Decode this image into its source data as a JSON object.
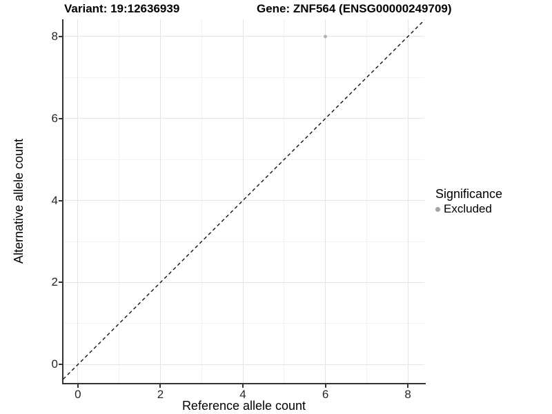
{
  "chart_data": {
    "type": "scatter",
    "titles": {
      "left": "Variant: 19:12636939",
      "right": "Gene: ZNF564 (ENSG00000249709)"
    },
    "xlabel": "Reference allele count",
    "ylabel": "Alternative allele count",
    "xlim": [
      -0.35,
      8.4
    ],
    "ylim": [
      -0.45,
      8.42
    ],
    "x_major_ticks": [
      0,
      2,
      4,
      6,
      8
    ],
    "x_minor_ticks": [
      1,
      3,
      5,
      7
    ],
    "y_major_ticks": [
      0,
      2,
      4,
      6,
      8
    ],
    "y_minor_ticks": [
      1,
      3,
      5,
      7
    ],
    "grid": "major+minor",
    "points": [
      {
        "x": 6,
        "y": 8,
        "series": "Excluded"
      }
    ],
    "identity_line": {
      "style": "dashed",
      "equation": "y = x",
      "from": -1,
      "to": 9.5
    },
    "legend": {
      "title": "Significance",
      "position": "right",
      "items": [
        {
          "label": "Excluded",
          "color": "#a3a3a3"
        }
      ]
    },
    "colors": {
      "point": "#b3b3b3",
      "grid_major": "#e4e4e4",
      "grid_minor": "#f2f2f2",
      "axis_line": "#333333",
      "dashed_line": "#111111",
      "background": "#ffffff"
    }
  }
}
